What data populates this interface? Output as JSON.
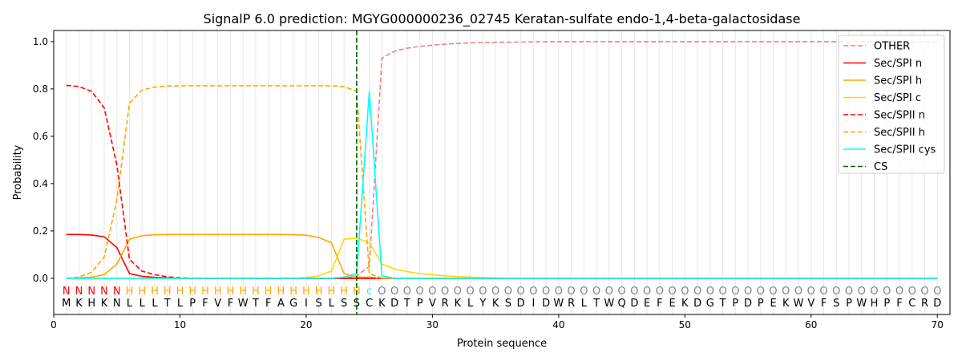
{
  "chart_data": {
    "type": "line",
    "title": "SignalP 6.0 prediction: MGYG000000236_02745 Keratan-sulfate endo-1,4-beta-galactosidase",
    "xlabel": "Protein sequence",
    "ylabel": "Probability",
    "xlim": [
      0,
      71
    ],
    "ylim": [
      -0.153,
      1.047
    ],
    "xticks": [
      0,
      10,
      20,
      30,
      40,
      50,
      60,
      70
    ],
    "yticks": [
      0.0,
      0.2,
      0.4,
      0.6,
      0.8,
      1.0
    ],
    "ytick_labels": [
      "0.0",
      "0.2",
      "0.4",
      "0.6",
      "0.8",
      "1.0"
    ],
    "legend_position": "top-right",
    "sequence": [
      "M",
      "K",
      "H",
      "K",
      "N",
      "L",
      "L",
      "L",
      "T",
      "L",
      "P",
      "F",
      "V",
      "F",
      "W",
      "T",
      "F",
      "A",
      "G",
      "I",
      "S",
      "L",
      "S",
      "S",
      "C",
      "K",
      "D",
      "T",
      "P",
      "V",
      "R",
      "K",
      "L",
      "Y",
      "K",
      "S",
      "D",
      "I",
      "D",
      "W",
      "R",
      "L",
      "T",
      "W",
      "Q",
      "D",
      "E",
      "F",
      "E",
      "K",
      "D",
      "G",
      "T",
      "P",
      "D",
      "P",
      "E",
      "K",
      "W",
      "V",
      "F",
      "S",
      "P",
      "W",
      "H",
      "P",
      "F",
      "C",
      "R",
      "D"
    ],
    "labels": [
      "N",
      "N",
      "N",
      "N",
      "N",
      "H",
      "H",
      "H",
      "H",
      "H",
      "H",
      "H",
      "H",
      "H",
      "H",
      "H",
      "H",
      "H",
      "H",
      "H",
      "H",
      "H",
      "H",
      "H",
      "c",
      "O",
      "O",
      "O",
      "O",
      "O",
      "O",
      "O",
      "O",
      "O",
      "O",
      "O",
      "O",
      "O",
      "O",
      "O",
      "O",
      "O",
      "O",
      "O",
      "O",
      "O",
      "O",
      "O",
      "O",
      "O",
      "O",
      "O",
      "O",
      "O",
      "O",
      "O",
      "O",
      "O",
      "O",
      "O",
      "O",
      "O",
      "O",
      "O",
      "O",
      "O",
      "O",
      "O",
      "O",
      "O"
    ],
    "label_colors": {
      "N": "#ff0000",
      "H": "#ffa500",
      "c": "#00ffff",
      "O": "#808080"
    },
    "cs_position": 24,
    "series": [
      {
        "name": "OTHER",
        "color": "#f08080",
        "dash": true,
        "values": [
          0,
          0,
          0,
          0,
          0,
          0,
          0,
          0,
          0,
          0,
          0,
          0,
          0,
          0,
          0,
          0,
          0,
          0,
          0,
          0,
          0,
          0,
          0,
          0.01,
          0.05,
          0.93,
          0.96,
          0.972,
          0.98,
          0.985,
          0.989,
          0.992,
          0.994,
          0.996,
          0.997,
          0.998,
          0.998,
          0.999,
          1,
          1,
          1,
          1,
          1,
          1,
          1,
          1,
          1,
          1,
          1,
          1,
          1,
          1,
          1,
          1,
          1,
          1,
          1,
          1,
          1,
          1,
          1,
          1,
          1,
          1,
          1,
          1,
          1,
          1,
          1,
          1
        ]
      },
      {
        "name": "Sec/SPI n",
        "color": "#ff0000",
        "dash": false,
        "values": [
          0.185,
          0.185,
          0.183,
          0.175,
          0.13,
          0.02,
          0.008,
          0.004,
          0.002,
          0,
          0,
          0,
          0,
          0,
          0,
          0,
          0,
          0,
          0,
          0,
          0,
          0,
          0,
          0,
          0,
          0,
          0,
          0,
          0,
          0,
          0,
          0,
          0,
          0,
          0,
          0,
          0,
          0,
          0,
          0,
          0,
          0,
          0,
          0,
          0,
          0,
          0,
          0,
          0,
          0,
          0,
          0,
          0,
          0,
          0,
          0,
          0,
          0,
          0,
          0,
          0,
          0,
          0,
          0,
          0,
          0,
          0,
          0,
          0,
          0
        ]
      },
      {
        "name": "Sec/SPI h",
        "color": "#ffa500",
        "dash": false,
        "values": [
          0,
          0.002,
          0.005,
          0.015,
          0.06,
          0.165,
          0.18,
          0.184,
          0.185,
          0.185,
          0.185,
          0.185,
          0.185,
          0.185,
          0.185,
          0.185,
          0.185,
          0.185,
          0.184,
          0.182,
          0.172,
          0.15,
          0.02,
          0.005,
          0.005,
          0,
          0,
          0,
          0,
          0,
          0,
          0,
          0,
          0,
          0,
          0,
          0,
          0,
          0,
          0,
          0,
          0,
          0,
          0,
          0,
          0,
          0,
          0,
          0,
          0,
          0,
          0,
          0,
          0,
          0,
          0,
          0,
          0,
          0,
          0,
          0,
          0,
          0,
          0,
          0,
          0,
          0,
          0,
          0,
          0
        ]
      },
      {
        "name": "Sec/SPI c",
        "color": "#ffd700",
        "dash": false,
        "values": [
          0,
          0,
          0,
          0,
          0,
          0,
          0,
          0,
          0,
          0,
          0,
          0,
          0,
          0,
          0,
          0,
          0,
          0,
          0,
          0.003,
          0.01,
          0.03,
          0.165,
          0.17,
          0.15,
          0.06,
          0.04,
          0.028,
          0.02,
          0.015,
          0.01,
          0.007,
          0.005,
          0.003,
          0.002,
          0,
          0,
          0,
          0,
          0,
          0,
          0,
          0,
          0,
          0,
          0,
          0,
          0,
          0,
          0,
          0,
          0,
          0,
          0,
          0,
          0,
          0,
          0,
          0,
          0,
          0,
          0,
          0,
          0,
          0,
          0,
          0,
          0,
          0,
          0
        ]
      },
      {
        "name": "Sec/SPII n",
        "color": "#ff0000",
        "dash": true,
        "values": [
          0.815,
          0.81,
          0.79,
          0.72,
          0.48,
          0.08,
          0.03,
          0.015,
          0.006,
          0.002,
          0,
          0,
          0,
          0,
          0,
          0,
          0,
          0,
          0,
          0,
          0,
          0,
          0,
          0,
          0,
          0,
          0,
          0,
          0,
          0,
          0,
          0,
          0,
          0,
          0,
          0,
          0,
          0,
          0,
          0,
          0,
          0,
          0,
          0,
          0,
          0,
          0,
          0,
          0,
          0,
          0,
          0,
          0,
          0,
          0,
          0,
          0,
          0,
          0,
          0,
          0,
          0,
          0,
          0,
          0,
          0,
          0,
          0,
          0,
          0
        ]
      },
      {
        "name": "Sec/SPII h",
        "color": "#ffa500",
        "dash": true,
        "values": [
          0,
          0.005,
          0.025,
          0.09,
          0.33,
          0.74,
          0.795,
          0.808,
          0.812,
          0.813,
          0.813,
          0.813,
          0.813,
          0.813,
          0.813,
          0.813,
          0.813,
          0.813,
          0.813,
          0.813,
          0.813,
          0.813,
          0.81,
          0.79,
          0.02,
          0,
          0,
          0,
          0,
          0,
          0,
          0,
          0,
          0,
          0,
          0,
          0,
          0,
          0,
          0,
          0,
          0,
          0,
          0,
          0,
          0,
          0,
          0,
          0,
          0,
          0,
          0,
          0,
          0,
          0,
          0,
          0,
          0,
          0,
          0,
          0,
          0,
          0,
          0,
          0,
          0,
          0,
          0,
          0,
          0
        ]
      },
      {
        "name": "Sec/SPII cys",
        "color": "#00ffff",
        "dash": false,
        "values": [
          0,
          0,
          0,
          0,
          0,
          0,
          0,
          0,
          0,
          0,
          0,
          0,
          0,
          0,
          0,
          0,
          0,
          0,
          0,
          0,
          0,
          0,
          0.005,
          0.02,
          0.79,
          0.01,
          0,
          0,
          0,
          0,
          0,
          0,
          0,
          0,
          0,
          0,
          0,
          0,
          0,
          0,
          0,
          0,
          0,
          0,
          0,
          0,
          0,
          0,
          0,
          0,
          0,
          0,
          0,
          0,
          0,
          0,
          0,
          0,
          0,
          0,
          0,
          0,
          0,
          0,
          0,
          0,
          0,
          0,
          0,
          0
        ]
      }
    ],
    "cs_legend": {
      "name": "CS",
      "color": "#006400"
    }
  }
}
